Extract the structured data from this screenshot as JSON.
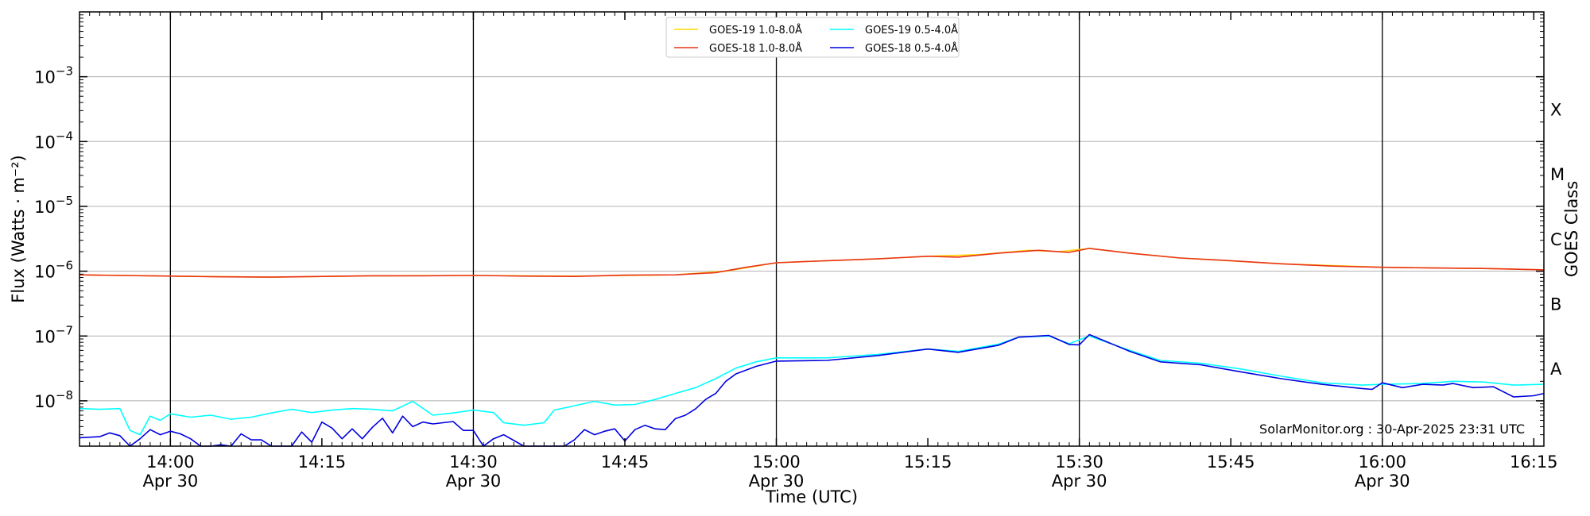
{
  "chart_data": {
    "type": "line",
    "xlabel": "Time (UTC)",
    "ylabel": "Flux (Watts · m⁻²)",
    "y2label": "GOES Class",
    "yscale": "log",
    "ylim": [
      2e-09,
      0.01
    ],
    "xlim": [
      "13:51",
      "16:16"
    ],
    "credit": "SolarMonitor.org : 30-Apr-2025 23:31 UTC",
    "legend_placement": "top-center",
    "grid": "horizontal at decades",
    "x_ticks": [
      {
        "t": "14:00",
        "label": "14:00",
        "sub": "Apr 30",
        "vline": true
      },
      {
        "t": "14:15",
        "label": "14:15",
        "sub": "",
        "vline": false
      },
      {
        "t": "14:30",
        "label": "14:30",
        "sub": "Apr 30",
        "vline": true
      },
      {
        "t": "14:45",
        "label": "14:45",
        "sub": "",
        "vline": false
      },
      {
        "t": "15:00",
        "label": "15:00",
        "sub": "Apr 30",
        "vline": true
      },
      {
        "t": "15:15",
        "label": "15:15",
        "sub": "",
        "vline": false
      },
      {
        "t": "15:30",
        "label": "15:30",
        "sub": "Apr 30",
        "vline": true
      },
      {
        "t": "15:45",
        "label": "15:45",
        "sub": "",
        "vline": false
      },
      {
        "t": "16:00",
        "label": "16:00",
        "sub": "Apr 30",
        "vline": true
      },
      {
        "t": "16:15",
        "label": "16:15",
        "sub": "",
        "vline": false
      }
    ],
    "y_ticks": [
      {
        "exp": -3,
        "label": "10",
        "sup": "−3"
      },
      {
        "exp": -4,
        "label": "10",
        "sup": "−4"
      },
      {
        "exp": -5,
        "label": "10",
        "sup": "−5"
      },
      {
        "exp": -6,
        "label": "10",
        "sup": "−6"
      },
      {
        "exp": -7,
        "label": "10",
        "sup": "−7"
      },
      {
        "exp": -8,
        "label": "10",
        "sup": "−8"
      }
    ],
    "goes_classes": [
      {
        "label": "X",
        "exp": -3.5
      },
      {
        "label": "M",
        "exp": -4.5
      },
      {
        "label": "C",
        "exp": -5.5
      },
      {
        "label": "B",
        "exp": -6.5
      },
      {
        "label": "A",
        "exp": -7.5
      }
    ],
    "series": [
      {
        "name": "GOES-19 1.0-8.0Å",
        "color": "#ffd700",
        "points": [
          [
            "13:51",
            8.8e-07
          ],
          [
            "14:00",
            8.4e-07
          ],
          [
            "14:10",
            8.1e-07
          ],
          [
            "14:20",
            8.5e-07
          ],
          [
            "14:30",
            8.6e-07
          ],
          [
            "14:40",
            8.4e-07
          ],
          [
            "14:50",
            8.8e-07
          ],
          [
            "14:55",
            1e-06
          ],
          [
            "15:00",
            1.35e-06
          ],
          [
            "15:05",
            1.45e-06
          ],
          [
            "15:10",
            1.55e-06
          ],
          [
            "15:15",
            1.7e-06
          ],
          [
            "15:20",
            1.8e-06
          ],
          [
            "15:25",
            2.1e-06
          ],
          [
            "15:28",
            2e-06
          ],
          [
            "15:31",
            2.25e-06
          ],
          [
            "15:35",
            1.9e-06
          ],
          [
            "15:40",
            1.6e-06
          ],
          [
            "15:50",
            1.3e-06
          ],
          [
            "16:00",
            1.15e-06
          ],
          [
            "16:10",
            1.1e-06
          ],
          [
            "16:16",
            1.05e-06
          ]
        ]
      },
      {
        "name": "GOES-18 1.0-8.0Å",
        "color": "#e8351a",
        "points": [
          [
            "13:51",
            8.8e-07
          ],
          [
            "13:55",
            8.6e-07
          ],
          [
            "14:00",
            8.4e-07
          ],
          [
            "14:05",
            8.2e-07
          ],
          [
            "14:10",
            8.1e-07
          ],
          [
            "14:15",
            8.3e-07
          ],
          [
            "14:20",
            8.5e-07
          ],
          [
            "14:25",
            8.5e-07
          ],
          [
            "14:30",
            8.6e-07
          ],
          [
            "14:35",
            8.4e-07
          ],
          [
            "14:40",
            8.3e-07
          ],
          [
            "14:45",
            8.7e-07
          ],
          [
            "14:50",
            8.8e-07
          ],
          [
            "14:54",
            9.5e-07
          ],
          [
            "14:57",
            1.15e-06
          ],
          [
            "15:00",
            1.35e-06
          ],
          [
            "15:05",
            1.45e-06
          ],
          [
            "15:10",
            1.55e-06
          ],
          [
            "15:15",
            1.7e-06
          ],
          [
            "15:18",
            1.65e-06
          ],
          [
            "15:22",
            1.9e-06
          ],
          [
            "15:26",
            2.1e-06
          ],
          [
            "15:29",
            1.95e-06
          ],
          [
            "15:31",
            2.25e-06
          ],
          [
            "15:35",
            1.9e-06
          ],
          [
            "15:40",
            1.6e-06
          ],
          [
            "15:45",
            1.45e-06
          ],
          [
            "15:50",
            1.3e-06
          ],
          [
            "15:55",
            1.2e-06
          ],
          [
            "16:00",
            1.15e-06
          ],
          [
            "16:05",
            1.12e-06
          ],
          [
            "16:10",
            1.1e-06
          ],
          [
            "16:16",
            1.05e-06
          ]
        ]
      },
      {
        "name": "GOES-19 0.5-4.0Å",
        "color": "#00ffff",
        "points": [
          [
            "13:51",
            7.6e-09
          ],
          [
            "13:53",
            7.4e-09
          ],
          [
            "13:55",
            7.6e-09
          ],
          [
            "13:56",
            3.5e-09
          ],
          [
            "13:57",
            3e-09
          ],
          [
            "13:58",
            5.8e-09
          ],
          [
            "13:59",
            5e-09
          ],
          [
            "14:00",
            6.3e-09
          ],
          [
            "14:02",
            5.6e-09
          ],
          [
            "14:04",
            6e-09
          ],
          [
            "14:06",
            5.2e-09
          ],
          [
            "14:08",
            5.6e-09
          ],
          [
            "14:10",
            6.5e-09
          ],
          [
            "14:12",
            7.4e-09
          ],
          [
            "14:14",
            6.6e-09
          ],
          [
            "14:16",
            7.2e-09
          ],
          [
            "14:18",
            7.6e-09
          ],
          [
            "14:20",
            7.4e-09
          ],
          [
            "14:22",
            7e-09
          ],
          [
            "14:24",
            9.8e-09
          ],
          [
            "14:26",
            6e-09
          ],
          [
            "14:28",
            6.5e-09
          ],
          [
            "14:30",
            7.2e-09
          ],
          [
            "14:32",
            6.6e-09
          ],
          [
            "14:33",
            4.6e-09
          ],
          [
            "14:35",
            4.2e-09
          ],
          [
            "14:37",
            4.6e-09
          ],
          [
            "14:38",
            7.2e-09
          ],
          [
            "14:40",
            8.4e-09
          ],
          [
            "14:42",
            9.8e-09
          ],
          [
            "14:44",
            8.6e-09
          ],
          [
            "14:46",
            8.8e-09
          ],
          [
            "14:48",
            1.05e-08
          ],
          [
            "14:50",
            1.3e-08
          ],
          [
            "14:52",
            1.6e-08
          ],
          [
            "14:54",
            2.2e-08
          ],
          [
            "14:56",
            3.2e-08
          ],
          [
            "14:58",
            4e-08
          ],
          [
            "15:00",
            4.6e-08
          ],
          [
            "15:05",
            4.6e-08
          ],
          [
            "15:10",
            5.2e-08
          ],
          [
            "15:15",
            6.3e-08
          ],
          [
            "15:18",
            5.8e-08
          ],
          [
            "15:22",
            7.5e-08
          ],
          [
            "15:24",
            9.6e-08
          ],
          [
            "15:27",
            1e-07
          ],
          [
            "15:29",
            7.6e-08
          ],
          [
            "15:31",
            1e-07
          ],
          [
            "15:35",
            6e-08
          ],
          [
            "15:38",
            4.2e-08
          ],
          [
            "15:42",
            3.8e-08
          ],
          [
            "15:46",
            3.1e-08
          ],
          [
            "15:50",
            2.4e-08
          ],
          [
            "15:54",
            1.9e-08
          ],
          [
            "15:58",
            1.75e-08
          ],
          [
            "16:00",
            1.8e-08
          ],
          [
            "16:04",
            1.85e-08
          ],
          [
            "16:07",
            2e-08
          ],
          [
            "16:10",
            1.95e-08
          ],
          [
            "16:13",
            1.75e-08
          ],
          [
            "16:16",
            1.8e-08
          ]
        ]
      },
      {
        "name": "GOES-18 0.5-4.0Å",
        "color": "#0000e0",
        "points": [
          [
            "13:51",
            2.7e-09
          ],
          [
            "13:53",
            2.8e-09
          ],
          [
            "13:54",
            3.2e-09
          ],
          [
            "13:55",
            2.9e-09
          ],
          [
            "13:56",
            2e-09
          ],
          [
            "13:57",
            2.6e-09
          ],
          [
            "13:58",
            3.6e-09
          ],
          [
            "13:59",
            3e-09
          ],
          [
            "14:00",
            3.4e-09
          ],
          [
            "14:01",
            3.1e-09
          ],
          [
            "14:02",
            2.6e-09
          ],
          [
            "14:03",
            2e-09
          ],
          [
            "14:04",
            1.4e-09
          ],
          [
            "14:05",
            2.1e-09
          ],
          [
            "14:06",
            1.8e-09
          ],
          [
            "14:07",
            3.1e-09
          ],
          [
            "14:08",
            2.5e-09
          ],
          [
            "14:09",
            2.5e-09
          ],
          [
            "14:10",
            1.9e-09
          ],
          [
            "14:11",
            1.3e-09
          ],
          [
            "14:12",
            2e-09
          ],
          [
            "14:13",
            3.3e-09
          ],
          [
            "14:14",
            2.3e-09
          ],
          [
            "14:15",
            4.7e-09
          ],
          [
            "14:16",
            3.8e-09
          ],
          [
            "14:17",
            2.6e-09
          ],
          [
            "14:18",
            3.7e-09
          ],
          [
            "14:19",
            2.6e-09
          ],
          [
            "14:20",
            3.9e-09
          ],
          [
            "14:21",
            5.4e-09
          ],
          [
            "14:22",
            3.2e-09
          ],
          [
            "14:23",
            5.8e-09
          ],
          [
            "14:24",
            4e-09
          ],
          [
            "14:25",
            4.7e-09
          ],
          [
            "14:26",
            4.4e-09
          ],
          [
            "14:28",
            4.8e-09
          ],
          [
            "14:29",
            3.5e-09
          ],
          [
            "14:30",
            3.5e-09
          ],
          [
            "14:31",
            2e-09
          ],
          [
            "14:32",
            2.6e-09
          ],
          [
            "14:33",
            3e-09
          ],
          [
            "14:35",
            2e-09
          ],
          [
            "14:36",
            1.5e-09
          ],
          [
            "14:38",
            1.3e-09
          ],
          [
            "14:39",
            1.2e-09
          ],
          [
            "14:40",
            2.5e-09
          ],
          [
            "14:41",
            3.6e-09
          ],
          [
            "14:42",
            3e-09
          ],
          [
            "14:43",
            3.4e-09
          ],
          [
            "14:44",
            3.7e-09
          ],
          [
            "14:45",
            2.4e-09
          ],
          [
            "14:46",
            3.6e-09
          ],
          [
            "14:47",
            4.2e-09
          ],
          [
            "14:48",
            3.7e-09
          ],
          [
            "14:49",
            3.6e-09
          ],
          [
            "14:50",
            5.3e-09
          ],
          [
            "14:51",
            6e-09
          ],
          [
            "14:52",
            7.5e-09
          ],
          [
            "14:53",
            1.05e-08
          ],
          [
            "14:54",
            1.3e-08
          ],
          [
            "14:55",
            2e-08
          ],
          [
            "14:56",
            2.6e-08
          ],
          [
            "14:58",
            3.4e-08
          ],
          [
            "15:00",
            4.1e-08
          ],
          [
            "15:05",
            4.2e-08
          ],
          [
            "15:10",
            5e-08
          ],
          [
            "15:15",
            6.3e-08
          ],
          [
            "15:18",
            5.6e-08
          ],
          [
            "15:22",
            7.2e-08
          ],
          [
            "15:24",
            9.6e-08
          ],
          [
            "15:27",
            1.02e-07
          ],
          [
            "15:29",
            7.4e-08
          ],
          [
            "15:30",
            7.3e-08
          ],
          [
            "15:31",
            1.05e-07
          ],
          [
            "15:35",
            5.8e-08
          ],
          [
            "15:38",
            4e-08
          ],
          [
            "15:42",
            3.6e-08
          ],
          [
            "15:46",
            2.8e-08
          ],
          [
            "15:50",
            2.2e-08
          ],
          [
            "15:54",
            1.8e-08
          ],
          [
            "15:58",
            1.55e-08
          ],
          [
            "15:59",
            1.5e-08
          ],
          [
            "16:00",
            1.9e-08
          ],
          [
            "16:02",
            1.6e-08
          ],
          [
            "16:04",
            1.8e-08
          ],
          [
            "16:06",
            1.75e-08
          ],
          [
            "16:07",
            1.85e-08
          ],
          [
            "16:09",
            1.6e-08
          ],
          [
            "16:11",
            1.65e-08
          ],
          [
            "16:13",
            1.15e-08
          ],
          [
            "16:15",
            1.2e-08
          ],
          [
            "16:16",
            1.3e-08
          ]
        ]
      }
    ]
  }
}
